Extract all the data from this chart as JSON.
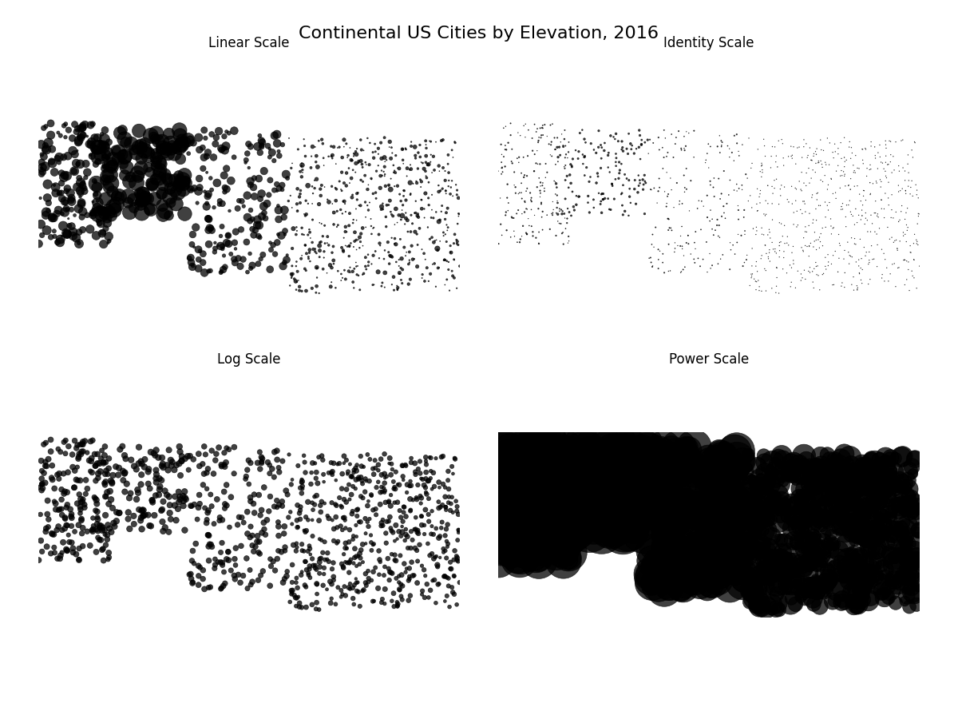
{
  "title": "Continental US Cities by Elevation, 2016",
  "title_fontsize": 16,
  "subplot_titles": [
    "Linear Scale",
    "Identity Scale",
    "Log Scale",
    "Power Scale"
  ],
  "subplot_title_fontsize": 12,
  "background_color": "#ffffff",
  "map_facecolor": "#e0e0e0",
  "map_edgecolor": "#bbbbbb",
  "dot_color": "black",
  "dot_alpha": 0.75,
  "dot_linewidth": 0.5,
  "min_size": 0.3,
  "lon_min": -125,
  "lon_max": -66,
  "lat_min": 24,
  "lat_max": 50,
  "n_west_high": 150,
  "n_west_mid": 200,
  "n_central": 200,
  "n_east": 600,
  "seed": 12345
}
